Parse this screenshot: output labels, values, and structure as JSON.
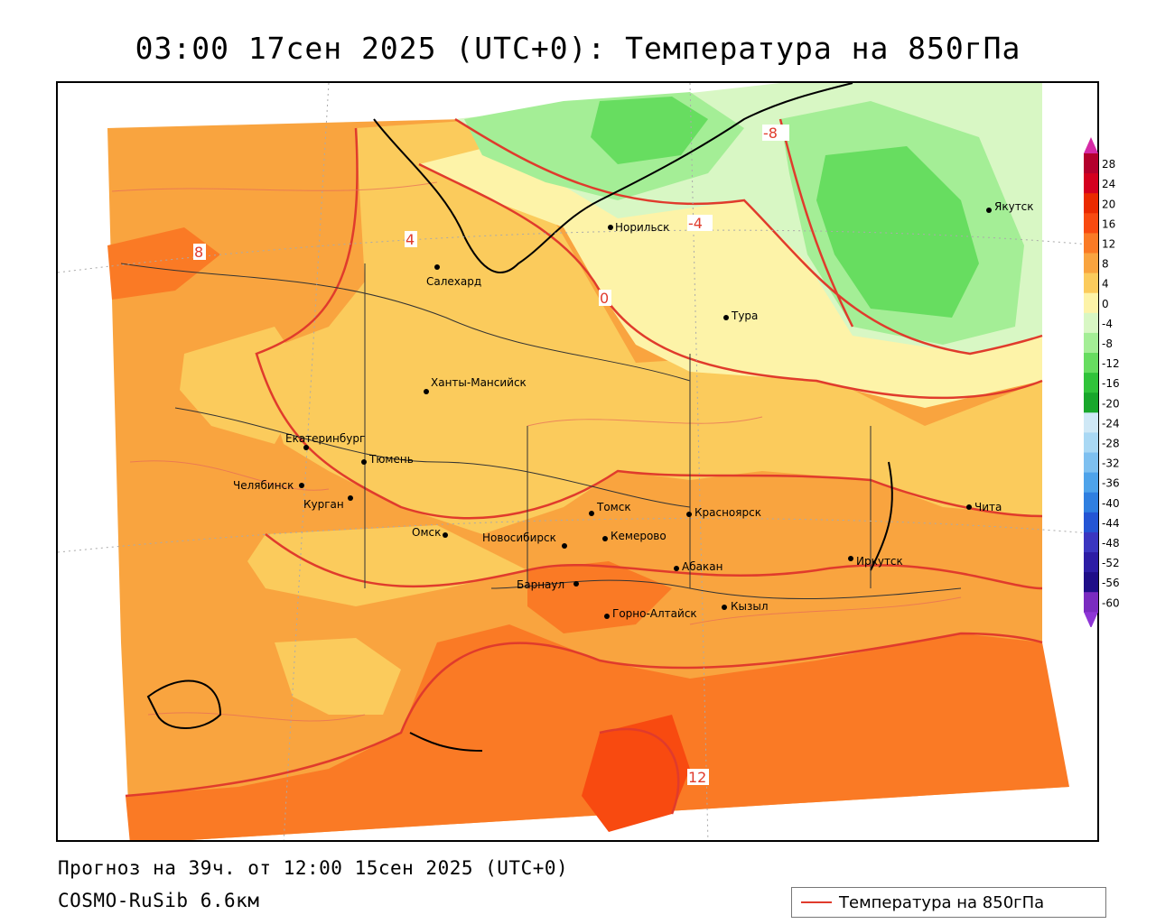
{
  "title": "03:00 17сен 2025 (UTC+0): Температура на 850гПа",
  "footer": {
    "run_line": "Прогноз на 39ч. от 12:00 15сен 2025 (UTC+0)",
    "model_line": "COSMO-RuSib 6.6км"
  },
  "legend": {
    "series_label": "Температура на 850гПа",
    "line_color": "#e03b2c"
  },
  "colorbar": {
    "levels": [
      "28",
      "24",
      "20",
      "16",
      "12",
      "8",
      "4",
      "0",
      "-4",
      "-8",
      "-12",
      "-16",
      "-20",
      "-24",
      "-28",
      "-32",
      "-36",
      "-40",
      "-44",
      "-48",
      "-52",
      "-56",
      "-60"
    ],
    "colors": [
      "#b3002d",
      "#d4001f",
      "#ea2a00",
      "#f84a10",
      "#fa7a25",
      "#f9a43f",
      "#fbcb5c",
      "#fdf3a8",
      "#d8f7c4",
      "#a4ee96",
      "#67dd60",
      "#30c33a",
      "#18a72b",
      "#cfe8f6",
      "#a9d8f4",
      "#7ec0f0",
      "#4ea3ea",
      "#2f7fe0",
      "#2455d4",
      "#3b36c0",
      "#2d1da5",
      "#1f0e88",
      "#7a2bc0"
    ],
    "top_arrow_color": "#d62aa6",
    "bottom_arrow_color": "#8e35d6"
  },
  "cities": [
    {
      "name": "Салехард"
    },
    {
      "name": "Норильск"
    },
    {
      "name": "Якутск"
    },
    {
      "name": "Тура"
    },
    {
      "name": "Ханты-Мансийск"
    },
    {
      "name": "Екатеринбург"
    },
    {
      "name": "Тюмень"
    },
    {
      "name": "Челябинск"
    },
    {
      "name": "Курган"
    },
    {
      "name": "Омск"
    },
    {
      "name": "Новосибирск"
    },
    {
      "name": "Томск"
    },
    {
      "name": "Кемерово"
    },
    {
      "name": "Красноярск"
    },
    {
      "name": "Барнаул"
    },
    {
      "name": "Абакан"
    },
    {
      "name": "Горно-Алтайск"
    },
    {
      "name": "Кызыл"
    },
    {
      "name": "Иркутск"
    },
    {
      "name": "Чита"
    }
  ],
  "contour_labels": [
    "8",
    "4",
    "-8",
    "-4",
    "0",
    "12"
  ]
}
